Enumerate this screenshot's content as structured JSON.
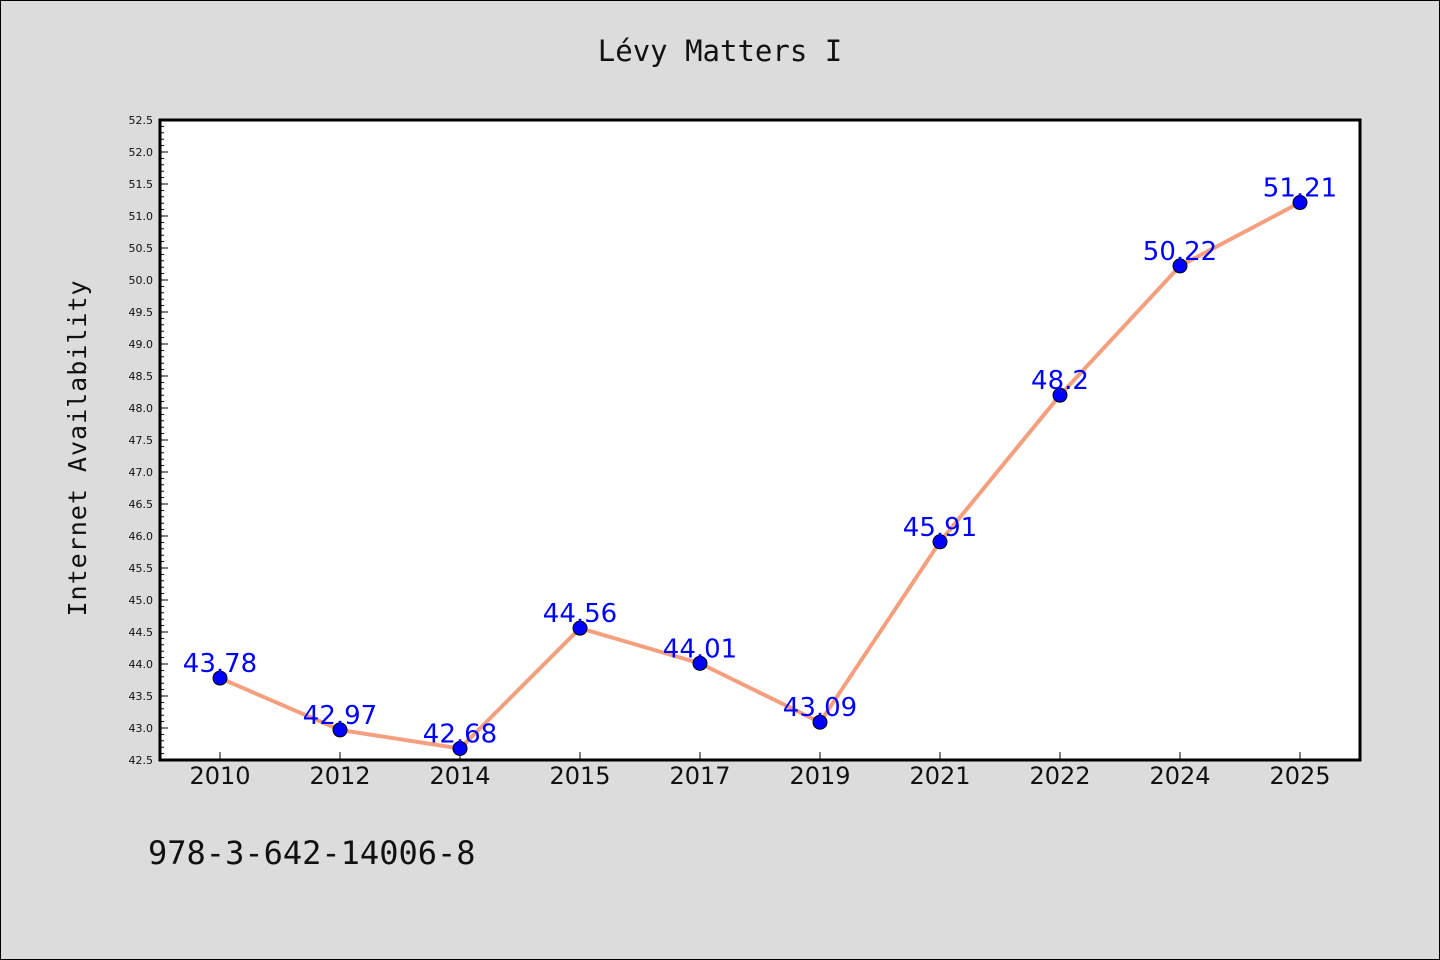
{
  "chart_data": {
    "type": "line",
    "title": "Lévy Matters I",
    "xlabel": "",
    "ylabel": "Internet Availability",
    "categories": [
      "2010",
      "2012",
      "2014",
      "2015",
      "2017",
      "2019",
      "2021",
      "2022",
      "2024",
      "2025"
    ],
    "series": [
      {
        "values": [
          43.78,
          42.97,
          42.68,
          44.56,
          44.01,
          43.09,
          45.91,
          48.2,
          50.22,
          51.21
        ],
        "labels": [
          "43.78",
          "42.97",
          "42.68",
          "44.56",
          "44.01",
          "43.09",
          "45.91",
          "48.2",
          "50.22",
          "51.21"
        ],
        "line_color": "#f4a07f",
        "marker_color": "#0000ff"
      }
    ],
    "ylim": [
      42.5,
      52.5
    ],
    "yticks": [
      "42.5",
      "43.0",
      "43.5",
      "44.0",
      "44.5",
      "45.0",
      "45.5",
      "46.0",
      "46.5",
      "47.0",
      "47.5",
      "48.0",
      "48.5",
      "49.0",
      "49.5",
      "50.0",
      "50.5",
      "51.0",
      "51.5",
      "52.0",
      "52.5"
    ],
    "grid": false,
    "legend": "none"
  },
  "footer": {
    "code": "978-3-642-14006-8"
  },
  "colors": {
    "background": "#dcdcdc",
    "plot_background": "#ffffff",
    "line": "#f4a07f",
    "marker": "#0000ff",
    "data_label": "#0000ff"
  }
}
